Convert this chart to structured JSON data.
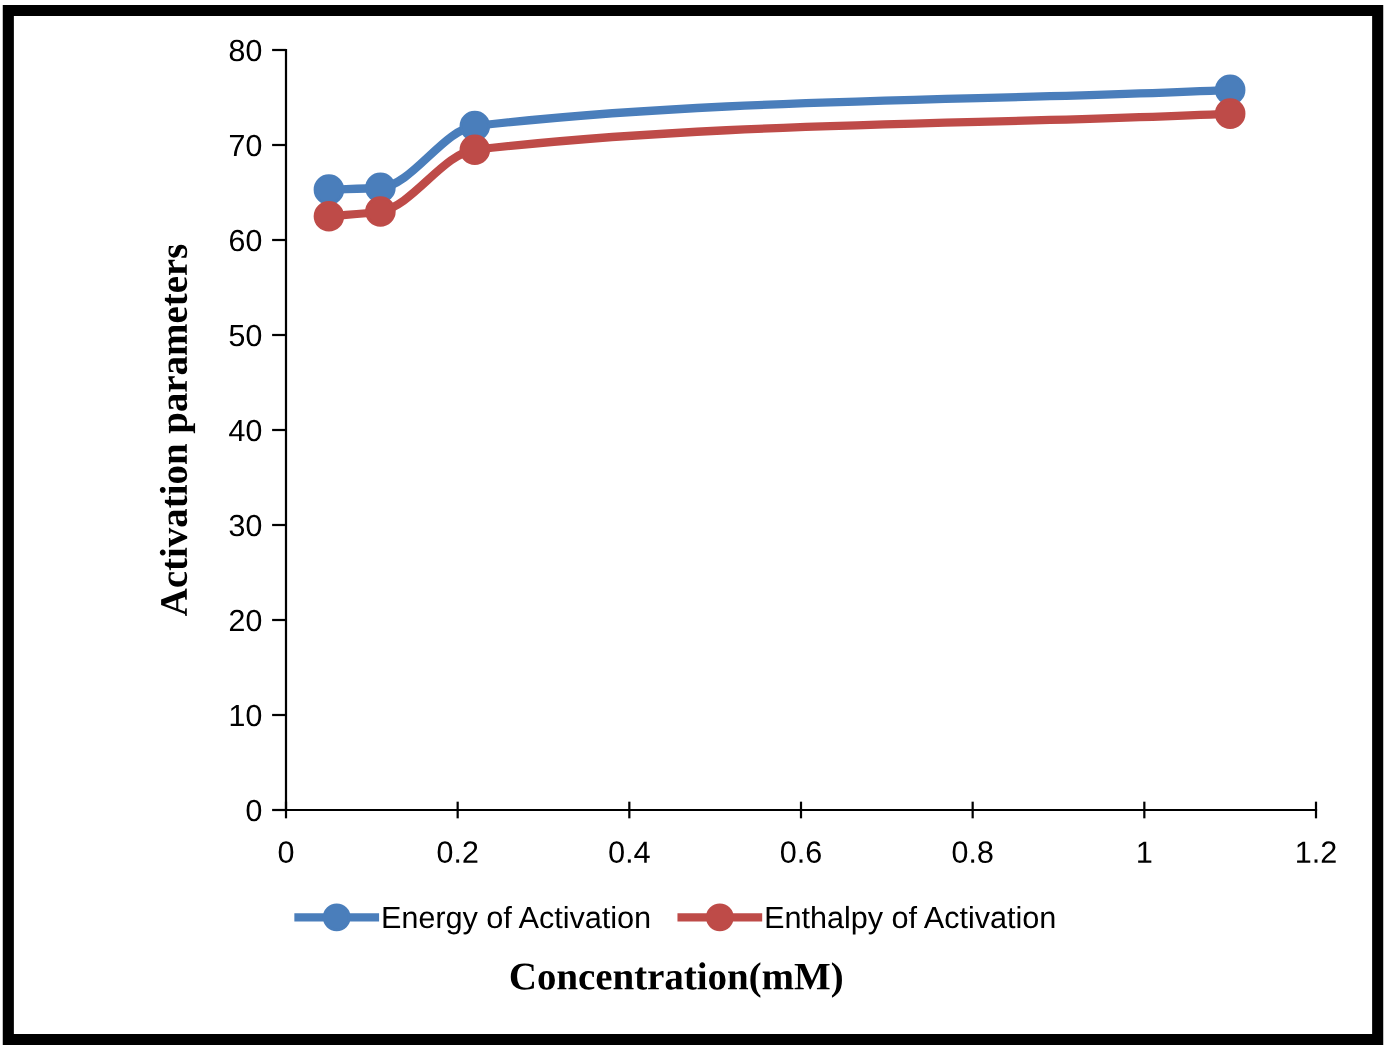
{
  "chart_data": {
    "type": "line",
    "xlabel": "Concentration(mM)",
    "ylabel": "Activation parameters",
    "series": [
      {
        "name": "Energy of Activation",
        "color": "#4a7ebb",
        "x": [
          0.05,
          0.11,
          0.22,
          1.1
        ],
        "values": [
          65.3,
          65.5,
          72.0,
          75.8
        ]
      },
      {
        "name": "Enthalpy of Activation",
        "color": "#be4b48",
        "x": [
          0.05,
          0.11,
          0.22,
          1.1
        ],
        "values": [
          62.5,
          63.0,
          69.5,
          73.3
        ]
      }
    ],
    "xlim": [
      0,
      1.2
    ],
    "xticks": [
      0,
      0.2,
      0.4,
      0.6,
      0.8,
      1,
      1.2
    ],
    "ylim": [
      0,
      80
    ],
    "yticks": [
      0,
      10,
      20,
      30,
      40,
      50,
      60,
      70,
      80
    ],
    "grid": false,
    "legend": "bottom",
    "marker": "circle",
    "line_style": "solid"
  }
}
